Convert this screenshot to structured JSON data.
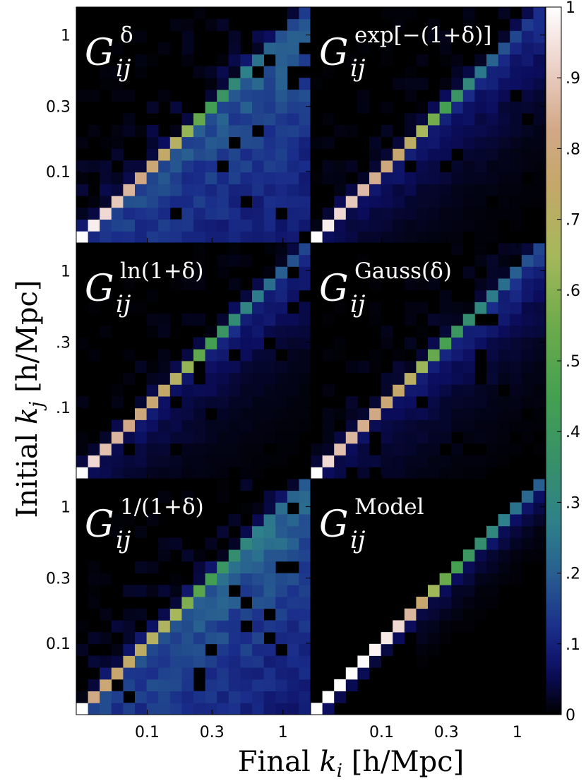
{
  "figure": {
    "xlabel": "Final k_i [h/Mpc]",
    "ylabel": "Initial k_j [h/Mpc]"
  },
  "chart_data": {
    "type": "heatmap",
    "xlabel": {
      "prefix": "Final ",
      "var": "k",
      "sub": "i",
      "unit": " [h/Mpc]"
    },
    "ylabel": {
      "prefix": "Initial ",
      "var": "k",
      "sub": "j",
      "unit": " [h/Mpc]"
    },
    "x_ticks": [
      {
        "value": 0.1,
        "label": "0.1"
      },
      {
        "value": 0.3,
        "label": "0.3"
      },
      {
        "value": 1,
        "label": "1"
      }
    ],
    "k_range": [
      0.03,
      1.6
    ],
    "scale": "log",
    "grid": false,
    "colorbar": {
      "range": [
        0,
        1
      ],
      "colormap": "gist_earth",
      "ticks": [
        {
          "value": 0,
          "label": "0"
        },
        {
          "value": 0.1,
          "label": ".1"
        },
        {
          "value": 0.2,
          "label": ".2"
        },
        {
          "value": 0.3,
          "label": ".3"
        },
        {
          "value": 0.4,
          "label": ".4"
        },
        {
          "value": 0.5,
          "label": ".5"
        },
        {
          "value": 0.6,
          "label": ".6"
        },
        {
          "value": 0.7,
          "label": ".7"
        },
        {
          "value": 0.8,
          "label": ".8"
        },
        {
          "value": 0.9,
          "label": ".9"
        },
        {
          "value": 1,
          "label": "1"
        }
      ]
    },
    "colormap_stops": [
      {
        "v": 0.0,
        "color": "#000000"
      },
      {
        "v": 0.06,
        "color": "#0b0d5e"
      },
      {
        "v": 0.12,
        "color": "#1a2d8a"
      },
      {
        "v": 0.2,
        "color": "#285f90"
      },
      {
        "v": 0.27,
        "color": "#2e808a"
      },
      {
        "v": 0.35,
        "color": "#368f6b"
      },
      {
        "v": 0.45,
        "color": "#44a050"
      },
      {
        "v": 0.55,
        "color": "#6daa4c"
      },
      {
        "v": 0.65,
        "color": "#a6b85a"
      },
      {
        "v": 0.75,
        "color": "#c5a76a"
      },
      {
        "v": 0.83,
        "color": "#d2a888"
      },
      {
        "v": 0.92,
        "color": "#edd3cb"
      },
      {
        "v": 1.0,
        "color": "#ffffff"
      }
    ],
    "panels": [
      {
        "id": "delta",
        "title_sup": "δ",
        "y_ticks": [
          {
            "value": 0.1,
            "label": "0.1"
          },
          {
            "value": 0.3,
            "label": "0.3"
          },
          {
            "value": 1,
            "label": "1"
          }
        ],
        "diagonal": [
          1.0,
          0.97,
          0.93,
          0.9,
          0.86,
          0.82,
          0.78,
          0.74,
          0.7,
          0.62,
          0.53,
          0.44,
          0.38,
          0.32,
          0.27,
          0.24,
          0.21,
          0.18,
          0.16,
          0.14
        ],
        "off_diagonal": {
          "profile": "broad-upper",
          "level": 0.2,
          "lower_noise": 0.08
        }
      },
      {
        "id": "exp",
        "title_sup": "exp[−(1+δ)]",
        "y_ticks": [],
        "diagonal": [
          1.0,
          0.97,
          0.93,
          0.9,
          0.87,
          0.84,
          0.8,
          0.76,
          0.72,
          0.66,
          0.56,
          0.45,
          0.38,
          0.31,
          0.25,
          0.21,
          0.18,
          0.16,
          0.14,
          0.12
        ],
        "off_diagonal": {
          "profile": "band",
          "level": 0.15,
          "lower_noise": 0.05
        }
      },
      {
        "id": "ln",
        "title_sup": "ln(1+δ)",
        "y_ticks": [
          {
            "value": 0.1,
            "label": ".1"
          },
          {
            "value": 0.3,
            "label": ".3"
          },
          {
            "value": 1,
            "label": "1"
          }
        ],
        "diagonal": [
          1.0,
          0.93,
          0.88,
          0.86,
          0.83,
          0.8,
          0.77,
          0.74,
          0.7,
          0.62,
          0.52,
          0.45,
          0.38,
          0.33,
          0.29,
          0.26,
          0.23,
          0.2,
          0.18,
          0.16
        ],
        "off_diagonal": {
          "profile": "band",
          "level": 0.15,
          "lower_noise": 0.05
        }
      },
      {
        "id": "gauss",
        "title_sup": "Gauss(δ)",
        "y_ticks": [],
        "diagonal": [
          1.0,
          0.93,
          0.88,
          0.86,
          0.84,
          0.82,
          0.78,
          0.75,
          0.71,
          0.63,
          0.53,
          0.46,
          0.39,
          0.34,
          0.3,
          0.26,
          0.23,
          0.2,
          0.18,
          0.16
        ],
        "off_diagonal": {
          "profile": "band",
          "level": 0.15,
          "lower_noise": 0.05
        }
      },
      {
        "id": "inv",
        "title_sup": "1/(1+δ)",
        "y_ticks": [
          {
            "value": 0.1,
            "label": "0.1"
          },
          {
            "value": 0.3,
            "label": "0.3"
          },
          {
            "value": 1,
            "label": "1"
          }
        ],
        "diagonal": [
          1.0,
          0.82,
          0.78,
          0.76,
          0.74,
          0.72,
          0.7,
          0.68,
          0.65,
          0.58,
          0.5,
          0.44,
          0.38,
          0.34,
          0.3,
          0.27,
          0.25,
          0.23,
          0.21,
          0.19
        ],
        "off_diagonal": {
          "profile": "broad-upper",
          "level": 0.22,
          "lower_noise": 0.08
        }
      },
      {
        "id": "model",
        "title_sup": "Model",
        "y_ticks": [],
        "diagonal": [
          1.0,
          1.0,
          1.0,
          1.0,
          0.99,
          0.98,
          0.96,
          0.93,
          0.86,
          0.76,
          0.64,
          0.54,
          0.45,
          0.39,
          0.34,
          0.3,
          0.27,
          0.24,
          0.22,
          0.2
        ],
        "off_diagonal": {
          "profile": "narrow",
          "level": 0.12,
          "lower_noise": 0.0
        }
      }
    ],
    "panel_title_base": "G",
    "panel_title_sub": "ij"
  }
}
